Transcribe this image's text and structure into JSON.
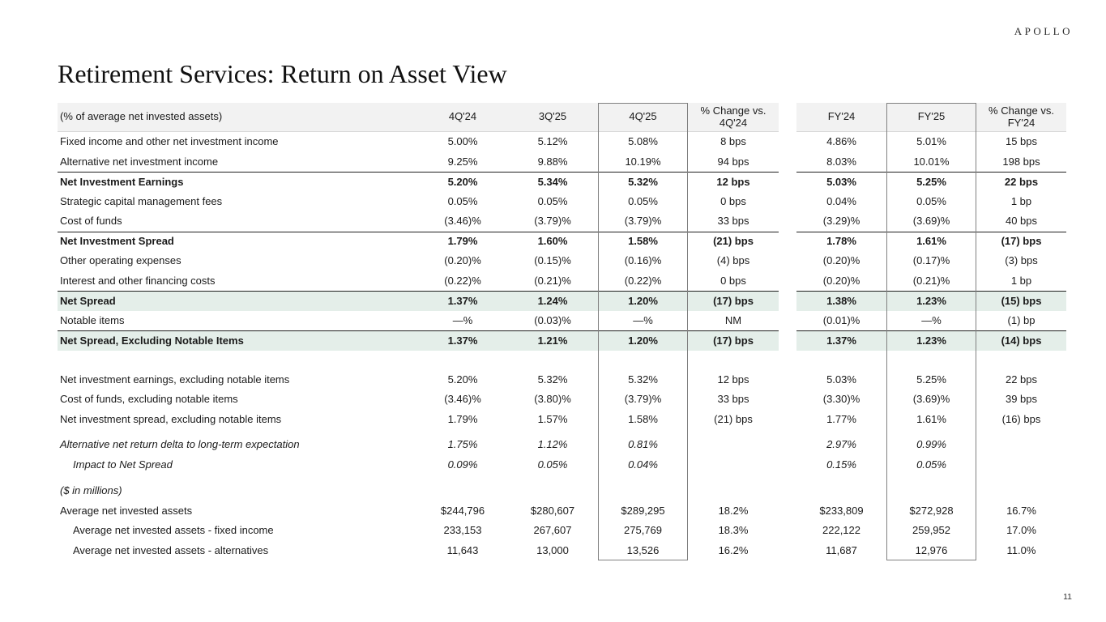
{
  "brand": {
    "logo_text": "APOLLO"
  },
  "page": {
    "title": "Retirement Services: Return on Asset View",
    "page_number": "11"
  },
  "colors": {
    "header_bg": "#f2f2f2",
    "highlight_bg": "#e4eee9",
    "border_dark": "#1f1f1f",
    "box_border": "#808080"
  },
  "table": {
    "header": {
      "label": "(% of average net invested assets)",
      "columns": [
        "4Q'24",
        "3Q'25",
        "4Q'25",
        "% Change vs.\n4Q'24",
        "FY'24",
        "FY'25",
        "% Change vs.\nFY'24"
      ]
    },
    "rows": [
      {
        "label": "Fixed income and other net investment income",
        "values": [
          "5.00%",
          "5.12%",
          "5.08%",
          "8 bps",
          "4.86%",
          "5.01%",
          "15 bps"
        ]
      },
      {
        "label": "Alternative net investment income",
        "values": [
          "9.25%",
          "9.88%",
          "10.19%",
          "94 bps",
          "8.03%",
          "10.01%",
          "198 bps"
        ]
      },
      {
        "label": "Net Investment Earnings",
        "bold": true,
        "btop": true,
        "values": [
          "5.20%",
          "5.34%",
          "5.32%",
          "12 bps",
          "5.03%",
          "5.25%",
          "22 bps"
        ]
      },
      {
        "label": "Strategic capital management fees",
        "values": [
          "0.05%",
          "0.05%",
          "0.05%",
          "0 bps",
          "0.04%",
          "0.05%",
          "1 bp"
        ]
      },
      {
        "label": "Cost of funds",
        "values": [
          "(3.46)%",
          "(3.79)%",
          "(3.79)%",
          "33 bps",
          "(3.29)%",
          "(3.69)%",
          "40 bps"
        ]
      },
      {
        "label": "Net Investment Spread",
        "bold": true,
        "btop": true,
        "values": [
          "1.79%",
          "1.60%",
          "1.58%",
          "(21) bps",
          "1.78%",
          "1.61%",
          "(17) bps"
        ]
      },
      {
        "label": "Other operating expenses",
        "values": [
          "(0.20)%",
          "(0.15)%",
          "(0.16)%",
          "(4) bps",
          "(0.20)%",
          "(0.17)%",
          "(3) bps"
        ]
      },
      {
        "label": "Interest and other financing costs",
        "values": [
          "(0.22)%",
          "(0.21)%",
          "(0.22)%",
          "0 bps",
          "(0.20)%",
          "(0.21)%",
          "1 bp"
        ]
      },
      {
        "label": "Net Spread",
        "bold": true,
        "green": true,
        "btop": true,
        "values": [
          "1.37%",
          "1.24%",
          "1.20%",
          "(17) bps",
          "1.38%",
          "1.23%",
          "(15) bps"
        ]
      },
      {
        "label": "Notable items",
        "values": [
          "—%",
          "(0.03)%",
          "—%",
          "NM",
          "(0.01)%",
          "—%",
          "(1) bp"
        ]
      },
      {
        "label": "Net Spread, Excluding Notable Items",
        "bold": true,
        "green": true,
        "btop": true,
        "values": [
          "1.37%",
          "1.21%",
          "1.20%",
          "(17) bps",
          "1.37%",
          "1.23%",
          "(14) bps"
        ]
      },
      {
        "spacer": 24
      },
      {
        "label": "Net investment earnings, excluding notable items",
        "values": [
          "5.20%",
          "5.32%",
          "5.32%",
          "12 bps",
          "5.03%",
          "5.25%",
          "22 bps"
        ]
      },
      {
        "label": "Cost of funds, excluding notable items",
        "values": [
          "(3.46)%",
          "(3.80)%",
          "(3.79)%",
          "33 bps",
          "(3.30)%",
          "(3.69)%",
          "39 bps"
        ]
      },
      {
        "label": "Net investment spread, excluding notable items",
        "values": [
          "1.79%",
          "1.57%",
          "1.58%",
          "(21) bps",
          "1.77%",
          "1.61%",
          "(16) bps"
        ]
      },
      {
        "spacer": 7
      },
      {
        "label": "Alternative net return delta to long-term expectation",
        "italic": true,
        "values": [
          "1.75%",
          "1.12%",
          "0.81%",
          "",
          "2.97%",
          "0.99%",
          ""
        ]
      },
      {
        "label": "Impact to Net Spread",
        "italic": true,
        "indent": 1,
        "values": [
          "0.09%",
          "0.05%",
          "0.04%",
          "",
          "0.15%",
          "0.05%",
          ""
        ]
      },
      {
        "spacer": 8
      },
      {
        "label": "($ in millions)",
        "italic": true,
        "values": [
          "",
          "",
          "",
          "",
          "",
          "",
          ""
        ]
      },
      {
        "label": "Average net invested assets",
        "values": [
          "$244,796",
          "$280,607",
          "$289,295",
          "18.2%",
          "$233,809",
          "$272,928",
          "16.7%"
        ]
      },
      {
        "label": "Average net invested assets - fixed income",
        "indent": 1,
        "values": [
          "233,153",
          "267,607",
          "275,769",
          "18.3%",
          "222,122",
          "259,952",
          "17.0%"
        ]
      },
      {
        "label": "Average net invested assets - alternatives",
        "indent": 1,
        "values": [
          "11,643",
          "13,000",
          "13,526",
          "16.2%",
          "11,687",
          "12,976",
          "11.0%"
        ]
      }
    ]
  }
}
